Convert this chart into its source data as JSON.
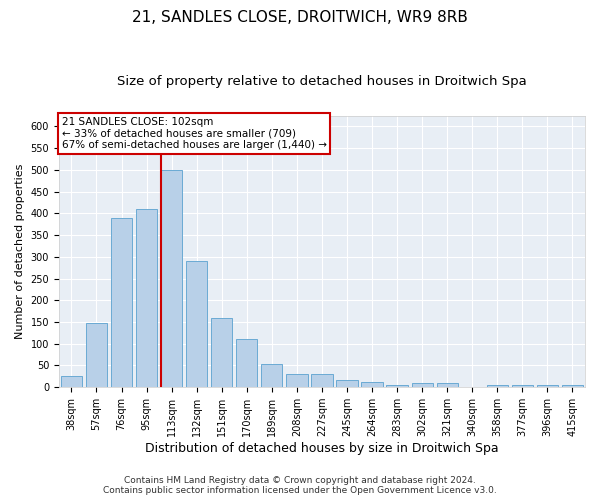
{
  "title": "21, SANDLES CLOSE, DROITWICH, WR9 8RB",
  "subtitle": "Size of property relative to detached houses in Droitwich Spa",
  "xlabel": "Distribution of detached houses by size in Droitwich Spa",
  "ylabel": "Number of detached properties",
  "categories": [
    "38sqm",
    "57sqm",
    "76sqm",
    "95sqm",
    "113sqm",
    "132sqm",
    "151sqm",
    "170sqm",
    "189sqm",
    "208sqm",
    "227sqm",
    "245sqm",
    "264sqm",
    "283sqm",
    "302sqm",
    "321sqm",
    "340sqm",
    "358sqm",
    "377sqm",
    "396sqm",
    "415sqm"
  ],
  "values": [
    25,
    148,
    390,
    410,
    500,
    290,
    160,
    110,
    53,
    30,
    30,
    16,
    12,
    6,
    9,
    10,
    0,
    4,
    4,
    5,
    4
  ],
  "bar_color": "#b8d0e8",
  "bar_edge_color": "#6aaad4",
  "vline_color": "#cc0000",
  "annotation_line1": "21 SANDLES CLOSE: 102sqm",
  "annotation_line2": "← 33% of detached houses are smaller (709)",
  "annotation_line3": "67% of semi-detached houses are larger (1,440) →",
  "annotation_box_facecolor": "#ffffff",
  "annotation_box_edgecolor": "#cc0000",
  "ylim": [
    0,
    625
  ],
  "yticks": [
    0,
    50,
    100,
    150,
    200,
    250,
    300,
    350,
    400,
    450,
    500,
    550,
    600
  ],
  "background_color": "#e8eef5",
  "grid_color": "#ffffff",
  "footer_line1": "Contains HM Land Registry data © Crown copyright and database right 2024.",
  "footer_line2": "Contains public sector information licensed under the Open Government Licence v3.0.",
  "title_fontsize": 11,
  "subtitle_fontsize": 9.5,
  "xlabel_fontsize": 9,
  "ylabel_fontsize": 8,
  "tick_fontsize": 7,
  "annotation_fontsize": 7.5,
  "footer_fontsize": 6.5
}
